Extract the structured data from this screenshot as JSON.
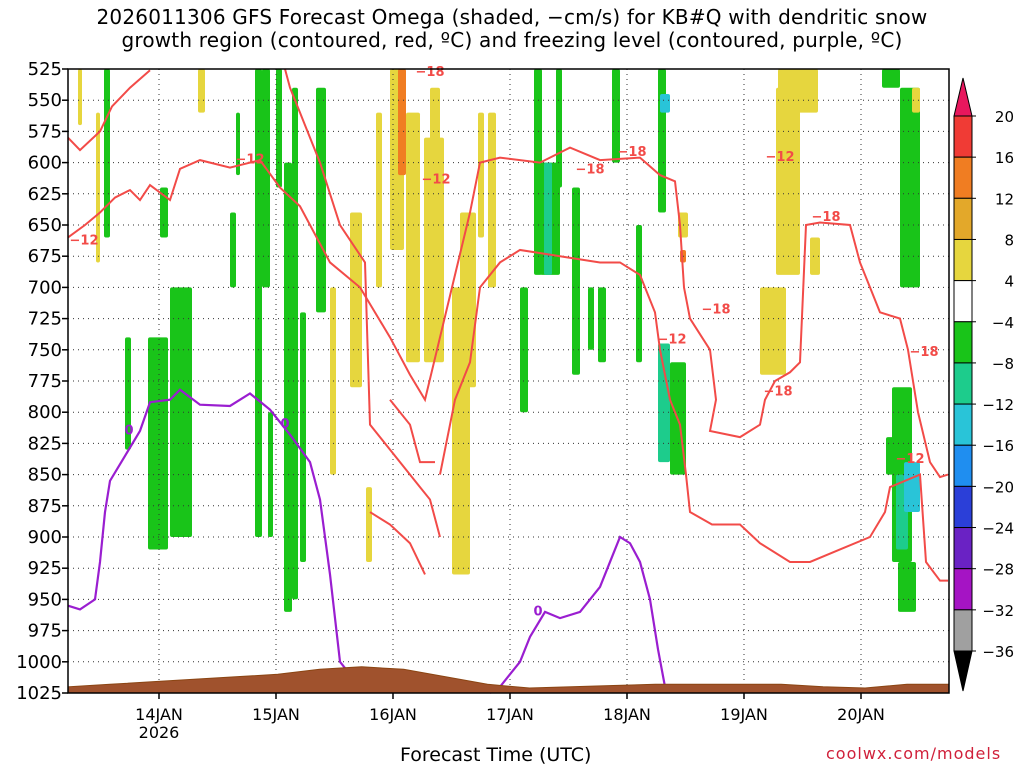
{
  "title": {
    "line1": "2026011306 GFS Forecast Omega (shaded, −cm/s) for KB#Q with dendritic snow",
    "line2": "growth region (contoured, red, ºC) and freezing level (contoured, purple, ºC)"
  },
  "credit": "coolwx.com/models",
  "chart_data": {
    "type": "heatmap",
    "xlabel": "Forecast Time (UTC)",
    "ylabel": "",
    "x_tick_labels": [
      "14JAN",
      "15JAN",
      "16JAN",
      "17JAN",
      "18JAN",
      "19JAN",
      "20JAN"
    ],
    "x_first_tick_sublabel": "2026",
    "x_range_hours": [
      0,
      180
    ],
    "y_levels_hPa": [
      525,
      550,
      575,
      600,
      625,
      650,
      675,
      700,
      725,
      750,
      775,
      800,
      825,
      850,
      875,
      900,
      925,
      950,
      975,
      1000,
      1025
    ],
    "ylim": [
      1025,
      525
    ],
    "grid": "dotted",
    "colorbar": {
      "labels": [
        "20",
        "16",
        "12",
        "8",
        "4",
        "−4",
        "−8",
        "−12",
        "−16",
        "−20",
        "−24",
        "−28",
        "−32",
        "−36"
      ],
      "colors": [
        "#e8175d",
        "#f03b35",
        "#f07d22",
        "#e3a82a",
        "#e6d63e",
        "#ffffff",
        "#19c419",
        "#1dcc8c",
        "#29c4d8",
        "#1f8ef0",
        "#2b3fd8",
        "#6a22c4",
        "#a514c4",
        "#a0a0a0",
        "#000000"
      ]
    },
    "contours": {
      "dendritic_red_labels": [
        "−12",
        "−12",
        "−12",
        "−12",
        "−12",
        "−12",
        "−18",
        "−18",
        "−18",
        "−18",
        "−18",
        "−18",
        "−18"
      ],
      "freezing_purple_labels": [
        "0",
        "0",
        "0"
      ]
    },
    "surface_pressure_hPa": [
      1020,
      1018,
      1016,
      1014,
      1012,
      1010,
      1006,
      1004,
      1006,
      1012,
      1018,
      1021,
      1020,
      1019,
      1018,
      1018,
      1018,
      1018,
      1020,
      1021,
      1018,
      1018
    ]
  }
}
